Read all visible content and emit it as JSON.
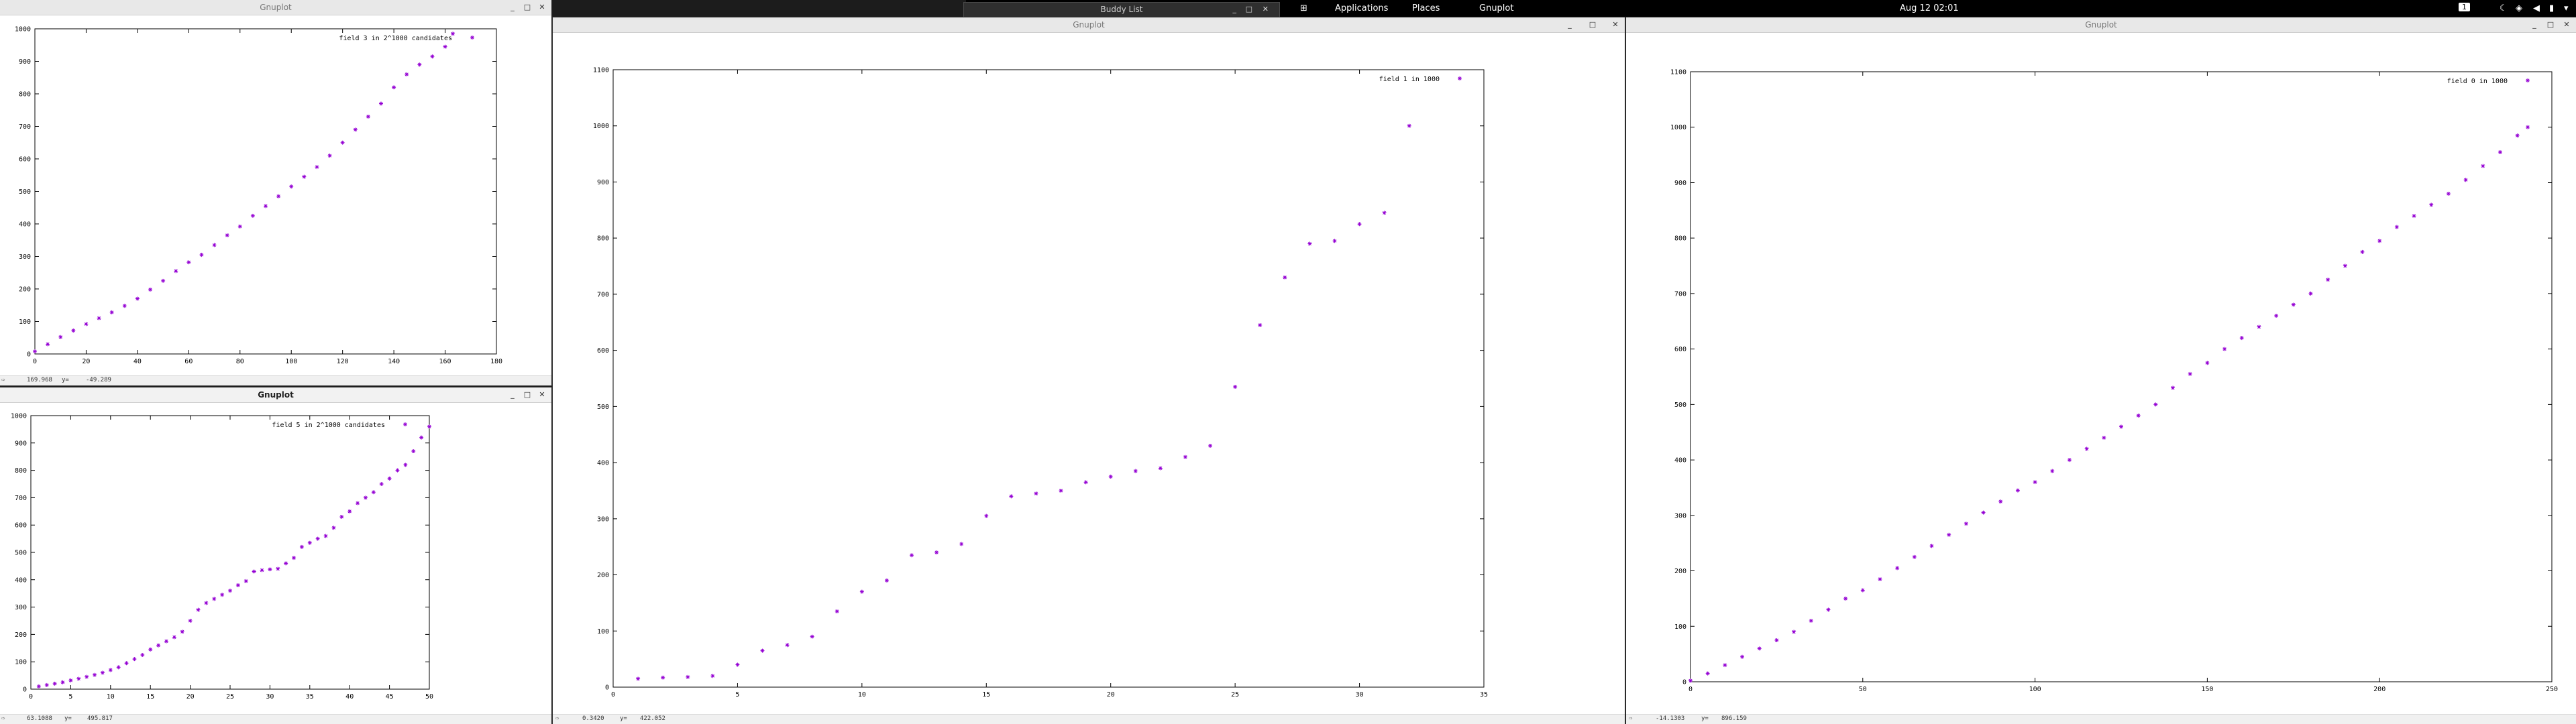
{
  "topbar": {
    "apps_icon": "apps-grid-icon",
    "applications": "Applications",
    "places": "Places",
    "active_app": "Gnuplot",
    "clock": "Aug 12  02:01",
    "workspace": "1"
  },
  "buddy": {
    "title": "Buddy List"
  },
  "windows": [
    {
      "id": "w1",
      "title": "Gnuplot",
      "status_x": "169.968",
      "status_y": "-49.289",
      "chart_data": {
        "type": "scatter",
        "legend": "field 3 in 2^1000 candidates",
        "legend_placement": "top-right",
        "color": "#9400d3",
        "xlim": [
          0,
          180
        ],
        "ylim": [
          0,
          1000
        ],
        "xticks": [
          0,
          20,
          40,
          60,
          80,
          100,
          120,
          140,
          160,
          180
        ],
        "yticks": [
          0,
          100,
          200,
          300,
          400,
          500,
          600,
          700,
          800,
          900,
          1000
        ],
        "points": [
          [
            0,
            8
          ],
          [
            5,
            30
          ],
          [
            10,
            52
          ],
          [
            15,
            72
          ],
          [
            20,
            92
          ],
          [
            25,
            110
          ],
          [
            30,
            128
          ],
          [
            35,
            148
          ],
          [
            40,
            170
          ],
          [
            45,
            198
          ],
          [
            50,
            225
          ],
          [
            55,
            255
          ],
          [
            60,
            282
          ],
          [
            65,
            305
          ],
          [
            70,
            335
          ],
          [
            75,
            365
          ],
          [
            80,
            392
          ],
          [
            85,
            425
          ],
          [
            90,
            455
          ],
          [
            95,
            485
          ],
          [
            100,
            515
          ],
          [
            105,
            545
          ],
          [
            110,
            575
          ],
          [
            115,
            610
          ],
          [
            120,
            650
          ],
          [
            125,
            690
          ],
          [
            130,
            730
          ],
          [
            135,
            770
          ],
          [
            140,
            820
          ],
          [
            145,
            860
          ],
          [
            150,
            890
          ],
          [
            155,
            915
          ],
          [
            160,
            945
          ],
          [
            163,
            985
          ]
        ]
      }
    },
    {
      "id": "w2",
      "title": "Gnuplot",
      "status_x": "63.1088",
      "status_y": "495.817",
      "chart_data": {
        "type": "scatter",
        "legend": "field 5 in 2^1000 candidates",
        "legend_placement": "top-right",
        "color": "#9400d3",
        "xlim": [
          0,
          50
        ],
        "ylim": [
          0,
          1000
        ],
        "xticks": [
          0,
          5,
          10,
          15,
          20,
          25,
          30,
          35,
          40,
          45,
          50
        ],
        "yticks": [
          0,
          100,
          200,
          300,
          400,
          500,
          600,
          700,
          800,
          900,
          1000
        ],
        "points": [
          [
            1,
            10
          ],
          [
            2,
            15
          ],
          [
            3,
            20
          ],
          [
            4,
            25
          ],
          [
            5,
            32
          ],
          [
            6,
            38
          ],
          [
            7,
            45
          ],
          [
            8,
            52
          ],
          [
            9,
            60
          ],
          [
            10,
            70
          ],
          [
            11,
            80
          ],
          [
            12,
            95
          ],
          [
            13,
            110
          ],
          [
            14,
            125
          ],
          [
            15,
            145
          ],
          [
            16,
            160
          ],
          [
            17,
            175
          ],
          [
            18,
            190
          ],
          [
            19,
            210
          ],
          [
            20,
            250
          ],
          [
            21,
            290
          ],
          [
            22,
            315
          ],
          [
            23,
            330
          ],
          [
            24,
            345
          ],
          [
            25,
            360
          ],
          [
            26,
            380
          ],
          [
            27,
            395
          ],
          [
            28,
            430
          ],
          [
            29,
            435
          ],
          [
            30,
            438
          ],
          [
            31,
            440
          ],
          [
            32,
            460
          ],
          [
            33,
            480
          ],
          [
            34,
            520
          ],
          [
            35,
            535
          ],
          [
            36,
            550
          ],
          [
            37,
            560
          ],
          [
            38,
            590
          ],
          [
            39,
            630
          ],
          [
            40,
            650
          ],
          [
            41,
            680
          ],
          [
            42,
            700
          ],
          [
            43,
            720
          ],
          [
            44,
            750
          ],
          [
            45,
            770
          ],
          [
            46,
            800
          ],
          [
            47,
            820
          ],
          [
            48,
            870
          ],
          [
            49,
            920
          ],
          [
            50,
            960
          ]
        ]
      }
    },
    {
      "id": "w3",
      "title": "Gnuplot",
      "status_x": "0.3420",
      "status_y": "422.052",
      "chart_data": {
        "type": "scatter",
        "legend": "field 1 in 1000",
        "legend_placement": "top-right",
        "color": "#9400d3",
        "xlim": [
          0,
          35
        ],
        "ylim": [
          0,
          1100
        ],
        "xticks": [
          0,
          5,
          10,
          15,
          20,
          25,
          30,
          35
        ],
        "yticks": [
          0,
          100,
          200,
          300,
          400,
          500,
          600,
          700,
          800,
          900,
          1000,
          1100
        ],
        "points": [
          [
            1,
            15
          ],
          [
            2,
            17
          ],
          [
            3,
            18
          ],
          [
            4,
            20
          ],
          [
            5,
            40
          ],
          [
            6,
            65
          ],
          [
            7,
            75
          ],
          [
            8,
            90
          ],
          [
            9,
            135
          ],
          [
            10,
            170
          ],
          [
            11,
            190
          ],
          [
            12,
            235
          ],
          [
            13,
            240
          ],
          [
            14,
            255
          ],
          [
            15,
            305
          ],
          [
            16,
            340
          ],
          [
            17,
            345
          ],
          [
            18,
            350
          ],
          [
            19,
            365
          ],
          [
            20,
            375
          ],
          [
            21,
            385
          ],
          [
            22,
            390
          ],
          [
            23,
            410
          ],
          [
            24,
            430
          ],
          [
            25,
            535
          ],
          [
            26,
            645
          ],
          [
            27,
            730
          ],
          [
            28,
            790
          ],
          [
            29,
            795
          ],
          [
            30,
            825
          ],
          [
            31,
            845
          ],
          [
            32,
            1000
          ]
        ]
      }
    },
    {
      "id": "w4",
      "title": "Gnuplot",
      "status_x": "-14.1303",
      "status_y": "896.159",
      "chart_data": {
        "type": "scatter",
        "legend": "field 0 in 1000",
        "legend_placement": "top-right",
        "color": "#9400d3",
        "xlim": [
          0,
          250
        ],
        "ylim": [
          0,
          1100
        ],
        "xticks": [
          0,
          50,
          100,
          150,
          200,
          250
        ],
        "yticks": [
          0,
          100,
          200,
          300,
          400,
          500,
          600,
          700,
          800,
          900,
          1000,
          1100
        ],
        "points": [
          [
            0,
            2
          ],
          [
            5,
            15
          ],
          [
            10,
            30
          ],
          [
            15,
            45
          ],
          [
            20,
            60
          ],
          [
            25,
            75
          ],
          [
            30,
            90
          ],
          [
            35,
            110
          ],
          [
            40,
            130
          ],
          [
            45,
            150
          ],
          [
            50,
            165
          ],
          [
            55,
            185
          ],
          [
            60,
            205
          ],
          [
            65,
            225
          ],
          [
            70,
            245
          ],
          [
            75,
            265
          ],
          [
            80,
            285
          ],
          [
            85,
            305
          ],
          [
            90,
            325
          ],
          [
            95,
            345
          ],
          [
            100,
            360
          ],
          [
            105,
            380
          ],
          [
            110,
            400
          ],
          [
            115,
            420
          ],
          [
            120,
            440
          ],
          [
            125,
            460
          ],
          [
            130,
            480
          ],
          [
            135,
            500
          ],
          [
            140,
            530
          ],
          [
            145,
            555
          ],
          [
            150,
            575
          ],
          [
            155,
            600
          ],
          [
            160,
            620
          ],
          [
            165,
            640
          ],
          [
            170,
            660
          ],
          [
            175,
            680
          ],
          [
            180,
            700
          ],
          [
            185,
            725
          ],
          [
            190,
            750
          ],
          [
            195,
            775
          ],
          [
            200,
            795
          ],
          [
            205,
            820
          ],
          [
            210,
            840
          ],
          [
            215,
            860
          ],
          [
            220,
            880
          ],
          [
            225,
            905
          ],
          [
            230,
            930
          ],
          [
            235,
            955
          ],
          [
            240,
            985
          ],
          [
            243,
            1000
          ]
        ]
      }
    }
  ]
}
